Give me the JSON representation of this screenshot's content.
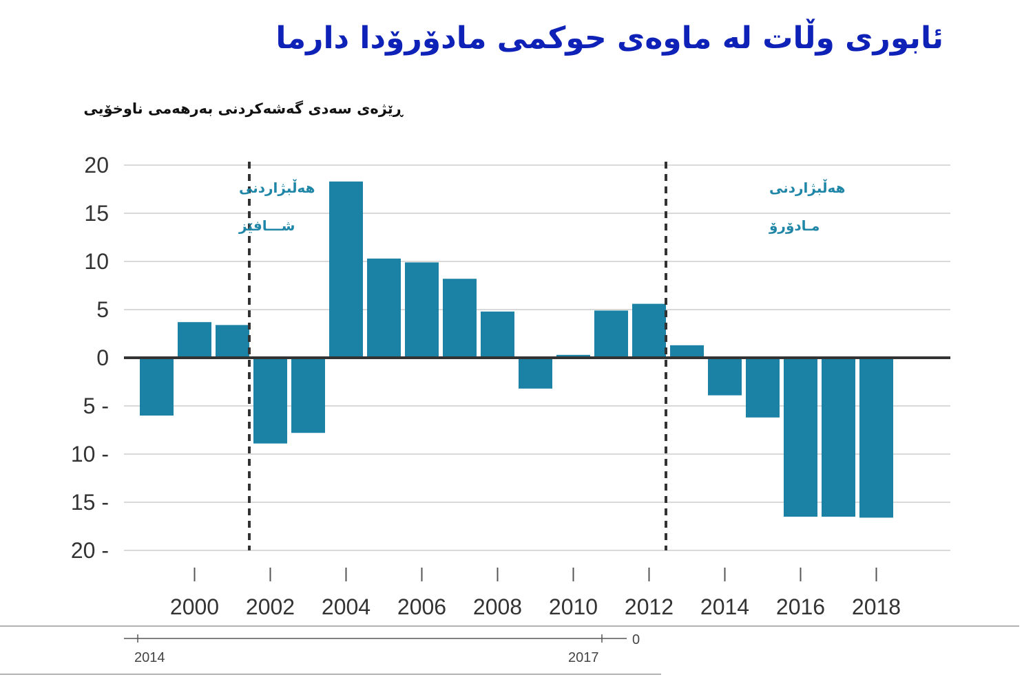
{
  "title": "ئابوری وڵات لە ماوەی حوکمی مادۆرۆدا دارما",
  "subtitle": "ڕێژەی سەدی گەشەکردنی بەرهەمی ناوخۆیی",
  "chart_data": {
    "type": "bar",
    "categories": [
      "1999",
      "2000",
      "2001",
      "2002",
      "2003",
      "2004",
      "2005",
      "2006",
      "2007",
      "2008",
      "2009",
      "2010",
      "2011",
      "2012",
      "2013",
      "2014",
      "2015",
      "2016",
      "2017",
      "2018"
    ],
    "values": [
      -6,
      3.7,
      3.4,
      -8.9,
      -7.8,
      18.3,
      10.3,
      9.9,
      8.2,
      4.8,
      -3.2,
      0.3,
      4.9,
      5.6,
      1.3,
      -3.9,
      -6.2,
      -16.5,
      -16.5,
      -16.6
    ],
    "ylim": [
      -20,
      20
    ],
    "yticks": [
      {
        "value": 20,
        "label": "20"
      },
      {
        "value": 15,
        "label": "15"
      },
      {
        "value": 10,
        "label": "10"
      },
      {
        "value": 5,
        "label": "5"
      },
      {
        "value": 0,
        "label": "0"
      },
      {
        "value": -5,
        "label": "5 -"
      },
      {
        "value": -10,
        "label": "10 -"
      },
      {
        "value": -15,
        "label": "15 -"
      },
      {
        "value": -20,
        "label": "20 -"
      }
    ],
    "xtick_labels": [
      "2000",
      "2002",
      "2004",
      "2006",
      "2008",
      "2010",
      "2012",
      "2014",
      "2016",
      "2018"
    ],
    "bar_color": "#1b82a5",
    "grid": true,
    "annotations": [
      {
        "name": "chavez-election",
        "after": "2001",
        "lines": [
          "هەڵبژاردنی",
          "شـــافێز"
        ]
      },
      {
        "name": "maduro-election",
        "after": "2012",
        "lines": [
          "هەڵبژاردنی",
          "مـادۆرۆ"
        ]
      }
    ],
    "footer_axis": {
      "labels": [
        "2014",
        "2017"
      ],
      "edge_label": "0"
    }
  }
}
